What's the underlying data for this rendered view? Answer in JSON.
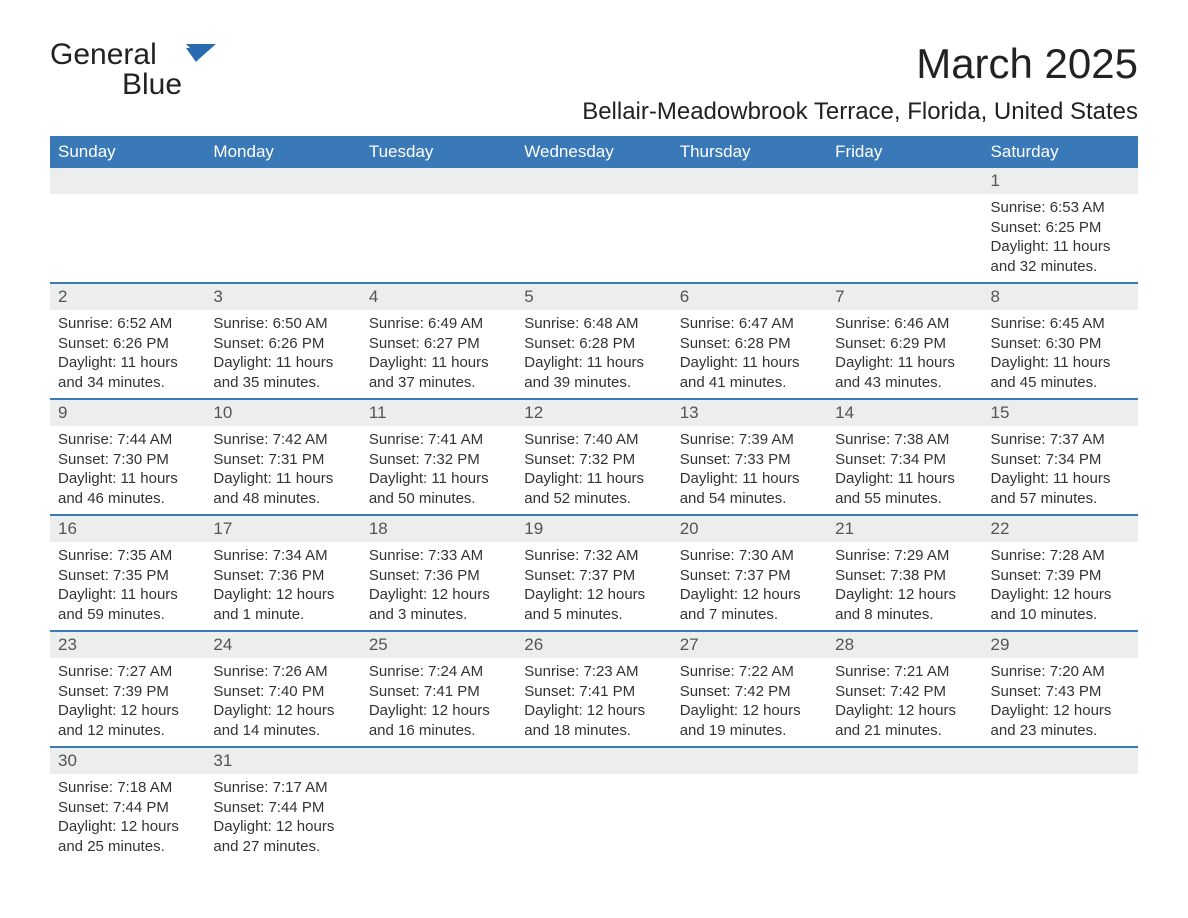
{
  "brand": {
    "name_a": "General",
    "name_b": "Blue"
  },
  "title": "March 2025",
  "location": "Bellair-Meadowbrook Terrace, Florida, United States",
  "colors": {
    "header_bg": "#3a79b7",
    "header_fg": "#ffffff",
    "daynum_bg": "#eceded",
    "row_border": "#3a79b7",
    "text": "#333333",
    "brand_blue": "#2a6bb0"
  },
  "fonts": {
    "title_size": 42,
    "location_size": 24,
    "dayhdr_size": 17,
    "body_size": 15
  },
  "day_headers": [
    "Sunday",
    "Monday",
    "Tuesday",
    "Wednesday",
    "Thursday",
    "Friday",
    "Saturday"
  ],
  "weeks": [
    [
      null,
      null,
      null,
      null,
      null,
      null,
      {
        "n": "1",
        "sunrise": "6:53 AM",
        "sunset": "6:25 PM",
        "daylight": "11 hours and 32 minutes."
      }
    ],
    [
      {
        "n": "2",
        "sunrise": "6:52 AM",
        "sunset": "6:26 PM",
        "daylight": "11 hours and 34 minutes."
      },
      {
        "n": "3",
        "sunrise": "6:50 AM",
        "sunset": "6:26 PM",
        "daylight": "11 hours and 35 minutes."
      },
      {
        "n": "4",
        "sunrise": "6:49 AM",
        "sunset": "6:27 PM",
        "daylight": "11 hours and 37 minutes."
      },
      {
        "n": "5",
        "sunrise": "6:48 AM",
        "sunset": "6:28 PM",
        "daylight": "11 hours and 39 minutes."
      },
      {
        "n": "6",
        "sunrise": "6:47 AM",
        "sunset": "6:28 PM",
        "daylight": "11 hours and 41 minutes."
      },
      {
        "n": "7",
        "sunrise": "6:46 AM",
        "sunset": "6:29 PM",
        "daylight": "11 hours and 43 minutes."
      },
      {
        "n": "8",
        "sunrise": "6:45 AM",
        "sunset": "6:30 PM",
        "daylight": "11 hours and 45 minutes."
      }
    ],
    [
      {
        "n": "9",
        "sunrise": "7:44 AM",
        "sunset": "7:30 PM",
        "daylight": "11 hours and 46 minutes."
      },
      {
        "n": "10",
        "sunrise": "7:42 AM",
        "sunset": "7:31 PM",
        "daylight": "11 hours and 48 minutes."
      },
      {
        "n": "11",
        "sunrise": "7:41 AM",
        "sunset": "7:32 PM",
        "daylight": "11 hours and 50 minutes."
      },
      {
        "n": "12",
        "sunrise": "7:40 AM",
        "sunset": "7:32 PM",
        "daylight": "11 hours and 52 minutes."
      },
      {
        "n": "13",
        "sunrise": "7:39 AM",
        "sunset": "7:33 PM",
        "daylight": "11 hours and 54 minutes."
      },
      {
        "n": "14",
        "sunrise": "7:38 AM",
        "sunset": "7:34 PM",
        "daylight": "11 hours and 55 minutes."
      },
      {
        "n": "15",
        "sunrise": "7:37 AM",
        "sunset": "7:34 PM",
        "daylight": "11 hours and 57 minutes."
      }
    ],
    [
      {
        "n": "16",
        "sunrise": "7:35 AM",
        "sunset": "7:35 PM",
        "daylight": "11 hours and 59 minutes."
      },
      {
        "n": "17",
        "sunrise": "7:34 AM",
        "sunset": "7:36 PM",
        "daylight": "12 hours and 1 minute."
      },
      {
        "n": "18",
        "sunrise": "7:33 AM",
        "sunset": "7:36 PM",
        "daylight": "12 hours and 3 minutes."
      },
      {
        "n": "19",
        "sunrise": "7:32 AM",
        "sunset": "7:37 PM",
        "daylight": "12 hours and 5 minutes."
      },
      {
        "n": "20",
        "sunrise": "7:30 AM",
        "sunset": "7:37 PM",
        "daylight": "12 hours and 7 minutes."
      },
      {
        "n": "21",
        "sunrise": "7:29 AM",
        "sunset": "7:38 PM",
        "daylight": "12 hours and 8 minutes."
      },
      {
        "n": "22",
        "sunrise": "7:28 AM",
        "sunset": "7:39 PM",
        "daylight": "12 hours and 10 minutes."
      }
    ],
    [
      {
        "n": "23",
        "sunrise": "7:27 AM",
        "sunset": "7:39 PM",
        "daylight": "12 hours and 12 minutes."
      },
      {
        "n": "24",
        "sunrise": "7:26 AM",
        "sunset": "7:40 PM",
        "daylight": "12 hours and 14 minutes."
      },
      {
        "n": "25",
        "sunrise": "7:24 AM",
        "sunset": "7:41 PM",
        "daylight": "12 hours and 16 minutes."
      },
      {
        "n": "26",
        "sunrise": "7:23 AM",
        "sunset": "7:41 PM",
        "daylight": "12 hours and 18 minutes."
      },
      {
        "n": "27",
        "sunrise": "7:22 AM",
        "sunset": "7:42 PM",
        "daylight": "12 hours and 19 minutes."
      },
      {
        "n": "28",
        "sunrise": "7:21 AM",
        "sunset": "7:42 PM",
        "daylight": "12 hours and 21 minutes."
      },
      {
        "n": "29",
        "sunrise": "7:20 AM",
        "sunset": "7:43 PM",
        "daylight": "12 hours and 23 minutes."
      }
    ],
    [
      {
        "n": "30",
        "sunrise": "7:18 AM",
        "sunset": "7:44 PM",
        "daylight": "12 hours and 25 minutes."
      },
      {
        "n": "31",
        "sunrise": "7:17 AM",
        "sunset": "7:44 PM",
        "daylight": "12 hours and 27 minutes."
      },
      null,
      null,
      null,
      null,
      null
    ]
  ],
  "labels": {
    "sunrise": "Sunrise:",
    "sunset": "Sunset:",
    "daylight": "Daylight:"
  }
}
